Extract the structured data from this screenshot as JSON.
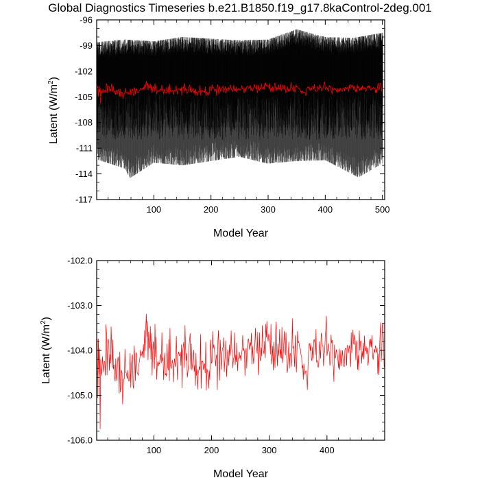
{
  "chart_data": [
    {
      "type": "line",
      "title": "Global Diagnostics Timeseries b.e21.B1850.f19_g17.8kaControl-2deg.001",
      "xlabel": "Model Year",
      "ylabel_main": "Latent (W/m",
      "ylabel_sup": "2",
      "ylabel_close": ")",
      "xlim": [
        0,
        504
      ],
      "ylim": [
        -117,
        -96
      ],
      "xticks": [
        100,
        200,
        300,
        400,
        500
      ],
      "xtick_labels": [
        "100",
        "200",
        "300",
        "400",
        "500"
      ],
      "yticks": [
        -96,
        -99,
        -102,
        -105,
        -108,
        -111,
        -114,
        -117
      ],
      "ytick_labels": [
        "-96",
        "-99",
        "-102",
        "-105",
        "-108",
        "-111",
        "-114",
        "-117"
      ],
      "grid": false,
      "series": [
        {
          "color": "#000000",
          "description": "monthly values, 500 years x 12 months, dense oscillation",
          "x_start": 0,
          "x_end": 501,
          "envelope_top_approx": [
            [
              0,
              -98.6
            ],
            [
              50,
              -98.3
            ],
            [
              100,
              -98.5
            ],
            [
              150,
              -98.0
            ],
            [
              200,
              -98.2
            ],
            [
              250,
              -98.4
            ],
            [
              300,
              -98.3
            ],
            [
              350,
              -97.1
            ],
            [
              400,
              -98.0
            ],
            [
              450,
              -98.1
            ],
            [
              500,
              -97.5
            ]
          ],
          "envelope_bottom_approx": [
            [
              0,
              -112.3
            ],
            [
              50,
              -113.4
            ],
            [
              58,
              -114.5
            ],
            [
              100,
              -112.7
            ],
            [
              150,
              -113.0
            ],
            [
              200,
              -112.5
            ],
            [
              250,
              -112.0
            ],
            [
              300,
              -112.8
            ],
            [
              350,
              -112.5
            ],
            [
              400,
              -112.4
            ],
            [
              458,
              -114.4
            ],
            [
              500,
              -112.8
            ]
          ],
          "fill_color": "#3c3c3c"
        },
        {
          "color": "#ff0000",
          "description": "annual means (same as bottom panel)",
          "mean": -104.1
        }
      ]
    },
    {
      "type": "line",
      "xlabel": "Model Year",
      "ylabel_main": "Latent (W/m",
      "ylabel_sup": "2",
      "ylabel_close": ")",
      "xlim": [
        1,
        500
      ],
      "ylim": [
        -106.0,
        -102.0
      ],
      "xticks": [
        100,
        200,
        300,
        400
      ],
      "xtick_labels": [
        "100",
        "200",
        "300",
        "400"
      ],
      "yticks": [
        -102.0,
        -103.0,
        -104.0,
        -105.0,
        -106.0
      ],
      "ytick_labels": [
        "-102.0",
        "-103.0",
        "-104.0",
        "-105.0",
        "-106.0"
      ],
      "grid": false,
      "series": [
        {
          "color": "#ff0000",
          "x_start": 1,
          "x_step": 1,
          "values": [
            -104.01,
            -103.74,
            -105.06,
            -103.74,
            -104.52,
            -103.96,
            -105.75,
            -104.2,
            -104.56,
            -104.47,
            -104.13,
            -104.33,
            -104.48,
            -104.24,
            -104.25,
            -104.56,
            -103.42,
            -103.61,
            -104.55,
            -103.78,
            -103.75,
            -103.82,
            -104.45,
            -104.09,
            -104.29,
            -103.47,
            -103.89,
            -104.39,
            -103.76,
            -104.42,
            -104.32,
            -104.58,
            -104.69,
            -104.18,
            -104.57,
            -104.68,
            -104.28,
            -104.14,
            -104.27,
            -104.96,
            -104.03,
            -104.93,
            -104.83,
            -104.44,
            -104.5,
            -105.2,
            -104.87,
            -104.63,
            -104.63,
            -103.97,
            -104.49,
            -104.49,
            -104.56,
            -104.63,
            -104.44,
            -104.66,
            -104.69,
            -104.55,
            -104.06,
            -104.83,
            -104.32,
            -104.17,
            -104.09,
            -104.79,
            -104.85,
            -103.89,
            -104.19,
            -104.68,
            -104.05,
            -104.07,
            -104.49,
            -104.51,
            -104.56,
            -104.31,
            -104.25,
            -104.15,
            -103.99,
            -104.12,
            -104.09,
            -104.02,
            -104.16,
            -103.86,
            -104.17,
            -103.55,
            -104.01,
            -103.5,
            -103.19,
            -103.7,
            -103.35,
            -104.22,
            -103.59,
            -103.91,
            -103.96,
            -103.46,
            -104.2,
            -103.62,
            -104.56,
            -104.06,
            -103.8,
            -104.15,
            -104.41,
            -103.41,
            -104.15,
            -103.7,
            -104.65,
            -104.33,
            -104.24,
            -104.35,
            -104.27,
            -104.31,
            -104.15,
            -104.08,
            -104.28,
            -103.6,
            -104.24,
            -104.16,
            -104.66,
            -104.26,
            -104.05,
            -104.55,
            -104.52,
            -104.58,
            -103.85,
            -104.36,
            -104.44,
            -103.75,
            -104.68,
            -103.5,
            -104.35,
            -104.41,
            -104.36,
            -104.21,
            -104.3,
            -104.71,
            -104.3,
            -104.18,
            -104.37,
            -104.2,
            -103.68,
            -104.24,
            -104.66,
            -104.1,
            -104.03,
            -104.11,
            -104.12,
            -104.03,
            -104.34,
            -103.87,
            -104.84,
            -104.04,
            -103.9,
            -103.81,
            -104.39,
            -103.44,
            -103.94,
            -104.23,
            -104.06,
            -104.6,
            -104.49,
            -104.34,
            -103.91,
            -103.75,
            -103.62,
            -104.42,
            -103.85,
            -104.44,
            -104.32,
            -104.1,
            -103.99,
            -104.48,
            -104.33,
            -104.79,
            -104.06,
            -104.56,
            -104.42,
            -104.87,
            -104.5,
            -104.44,
            -104.36,
            -104.44,
            -103.64,
            -104.85,
            -104.23,
            -104.26,
            -104.24,
            -104.43,
            -104.34,
            -104.29,
            -104.51,
            -103.81,
            -104.89,
            -104.41,
            -104.46,
            -104.58,
            -104.85,
            -104.45,
            -104.66,
            -103.76,
            -103.96,
            -104.29,
            -104.25,
            -103.57,
            -103.96,
            -103.87,
            -103.98,
            -104.13,
            -104.35,
            -104.15,
            -104.09,
            -104.88,
            -103.79,
            -103.55,
            -104.21,
            -104.67,
            -103.76,
            -104.07,
            -104.43,
            -104.05,
            -103.95,
            -103.93,
            -103.71,
            -104.48,
            -104.24,
            -104.07,
            -103.78,
            -104.59,
            -104.32,
            -103.98,
            -104.09,
            -104.34,
            -103.87,
            -104.12,
            -104.01,
            -103.56,
            -103.96,
            -104.04,
            -104.39,
            -104.18,
            -104.15,
            -103.6,
            -104.32,
            -104.1,
            -104.26,
            -103.83,
            -104.46,
            -104.22,
            -104.14,
            -104.03,
            -104.18,
            -104.11,
            -104.23,
            -104.09,
            -103.98,
            -103.66,
            -104.02,
            -103.95,
            -104.03,
            -104.57,
            -104.05,
            -103.95,
            -104.4,
            -103.92,
            -103.77,
            -103.74,
            -103.87,
            -103.99,
            -103.82,
            -103.9,
            -103.61,
            -104.31,
            -103.9,
            -104.14,
            -104.3,
            -104.04,
            -103.88,
            -103.5,
            -103.89,
            -103.92,
            -104.07,
            -103.59,
            -104.55,
            -104.31,
            -103.6,
            -104.17,
            -104.24,
            -103.94,
            -104.13,
            -103.44,
            -103.87,
            -104.02,
            -104.08,
            -103.79,
            -104.17,
            -103.41,
            -103.71,
            -103.35,
            -103.65,
            -103.8,
            -103.63,
            -103.7,
            -103.77,
            -104.09,
            -103.41,
            -104.31,
            -104.17,
            -103.9,
            -104.44,
            -103.81,
            -104.08,
            -104.39,
            -103.58,
            -103.36,
            -104.0,
            -104.35,
            -103.85,
            -104.13,
            -103.96,
            -103.53,
            -104.17,
            -103.97,
            -104.18,
            -103.48,
            -104.28,
            -104.13,
            -103.89,
            -103.57,
            -104.0,
            -104.11,
            -103.6,
            -104.06,
            -104.5,
            -104.41,
            -104.06,
            -103.81,
            -104.4,
            -104.07,
            -104.07,
            -104.36,
            -104.06,
            -103.29,
            -103.96,
            -103.9,
            -104.1,
            -104.37,
            -103.66,
            -104.16,
            -104.49,
            -104.04,
            -103.57,
            -103.83,
            -103.8,
            -103.87,
            -103.97,
            -103.97,
            -104.1,
            -104.12,
            -104.4,
            -104.33,
            -104.65,
            -104.3,
            -104.43,
            -104.54,
            -104.46,
            -104.46,
            -104.55,
            -104.88,
            -104.43,
            -104.05,
            -103.85,
            -103.85,
            -104.01,
            -103.84,
            -104.2,
            -104.23,
            -103.92,
            -104.19,
            -103.77,
            -103.76,
            -103.84,
            -104.1,
            -103.53,
            -104.27,
            -104.22,
            -104.35,
            -104.38,
            -104.23,
            -103.8,
            -103.98,
            -104.18,
            -103.61,
            -103.7,
            -103.89,
            -103.9,
            -104.35,
            -104.09,
            -104.04,
            -103.7,
            -103.51,
            -103.23,
            -104.12,
            -104.04,
            -103.84,
            -103.98,
            -104.04,
            -104.34,
            -104.25,
            -103.65,
            -103.84,
            -103.77,
            -104.19,
            -104.38,
            -104.7,
            -103.87,
            -104.17,
            -104.16,
            -103.98,
            -104.04,
            -104.09,
            -104.22,
            -104.39,
            -103.96,
            -104.43,
            -104.27,
            -103.99,
            -104.35,
            -104.17,
            -104.0,
            -104.21,
            -104.35,
            -104.36,
            -104.0,
            -103.95,
            -103.96,
            -104.34,
            -103.89,
            -103.89,
            -104.06,
            -103.96,
            -103.89,
            -104.12,
            -104.37,
            -103.6,
            -104.06,
            -103.84,
            -103.54,
            -103.84,
            -103.87,
            -103.65,
            -103.8,
            -104.22,
            -103.89,
            -103.78,
            -104.43,
            -104.11,
            -104.45,
            -103.56,
            -104.0,
            -103.81,
            -103.78,
            -104.29,
            -104.02,
            -104.16,
            -103.83,
            -104.2,
            -103.67,
            -103.98,
            -104.02,
            -103.91,
            -104.08,
            -103.94,
            -104.34,
            -104.23,
            -103.91,
            -103.75,
            -103.91,
            -103.74,
            -103.93,
            -103.66,
            -104.11,
            -104.21,
            -104.05,
            -103.97,
            -104.05,
            -103.89,
            -103.94,
            -104.05,
            -103.95,
            -104.52,
            -104.07,
            -104.55,
            -104.01,
            -103.63,
            -103.38,
            -104.25,
            -103.98,
            -103.43,
            -103.4,
            -103.81,
            -104.37
          ]
        }
      ]
    }
  ]
}
